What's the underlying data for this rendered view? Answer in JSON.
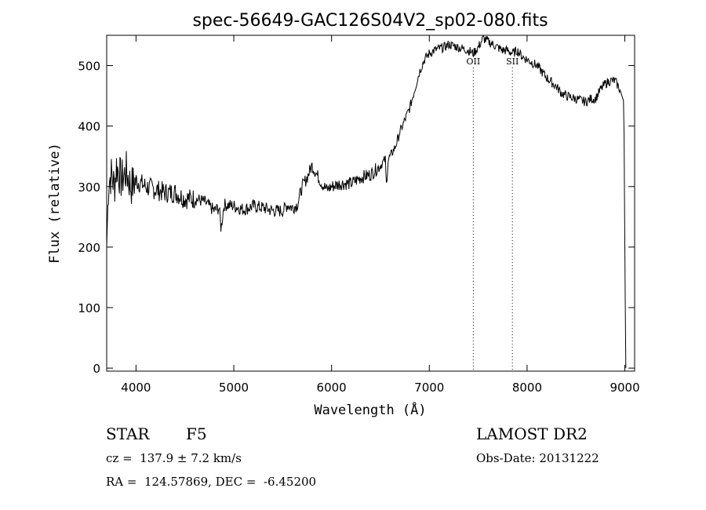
{
  "chart_data": {
    "type": "line",
    "title": "spec-56649-GAC126S04V2_sp02-080.fits",
    "xlabel": "Wavelength (Å)",
    "ylabel": "Flux (relative)",
    "xlim": [
      3700,
      9100
    ],
    "ylim": [
      -5,
      550
    ],
    "xticks": [
      4000,
      5000,
      6000,
      7000,
      8000,
      9000
    ],
    "yticks": [
      0,
      100,
      200,
      300,
      400,
      500
    ],
    "grid": false,
    "series": [
      {
        "x": [
          3700,
          3720,
          3750,
          3780,
          3800,
          3850,
          3900,
          3950,
          4000,
          4100,
          4200,
          4300,
          4400,
          4500,
          4600,
          4700,
          4800,
          4850,
          4870,
          4900,
          5000,
          5100,
          5200,
          5300,
          5400,
          5500,
          5550,
          5600,
          5650,
          5700,
          5750,
          5800,
          5850,
          5900,
          5950,
          6000,
          6100,
          6200,
          6300,
          6400,
          6500,
          6550,
          6560,
          6580,
          6600,
          6650,
          6700,
          6750,
          6800,
          6850,
          6900,
          6950,
          7000,
          7050,
          7100,
          7150,
          7200,
          7300,
          7400,
          7450,
          7500,
          7550,
          7600,
          7650,
          7700,
          7750,
          7800,
          7850,
          7900,
          7950,
          8000,
          8050,
          8100,
          8200,
          8300,
          8350,
          8400,
          8500,
          8600,
          8650,
          8700,
          8750,
          8800,
          8850,
          8900,
          8950,
          8990,
          9000,
          9010
        ],
        "y": [
          200,
          310,
          320,
          300,
          335,
          310,
          325,
          300,
          310,
          300,
          295,
          290,
          290,
          280,
          280,
          275,
          260,
          265,
          230,
          270,
          268,
          262,
          268,
          265,
          260,
          260,
          270,
          265,
          270,
          300,
          315,
          335,
          320,
          305,
          295,
          300,
          305,
          305,
          315,
          320,
          335,
          345,
          300,
          345,
          350,
          365,
          390,
          410,
          430,
          460,
          490,
          510,
          520,
          525,
          528,
          530,
          535,
          530,
          525,
          520,
          530,
          545,
          540,
          535,
          530,
          525,
          525,
          520,
          525,
          515,
          510,
          505,
          500,
          480,
          465,
          455,
          450,
          445,
          440,
          445,
          445,
          460,
          470,
          475,
          475,
          460,
          440,
          200,
          0
        ]
      }
    ],
    "annotations": [
      {
        "label": "OII",
        "x": 7450
      },
      {
        "label": "SII",
        "x": 7850
      }
    ]
  },
  "footer": {
    "left_line1_a": "STAR",
    "left_line1_b": "F5",
    "left_line2": "cz =  137.9 ± 7.2 km/s",
    "left_line3": "RA =  124.57869, DEC =  -6.45200",
    "right_line1": "LAMOST DR2",
    "right_line2": "Obs-Date: 20131222"
  }
}
